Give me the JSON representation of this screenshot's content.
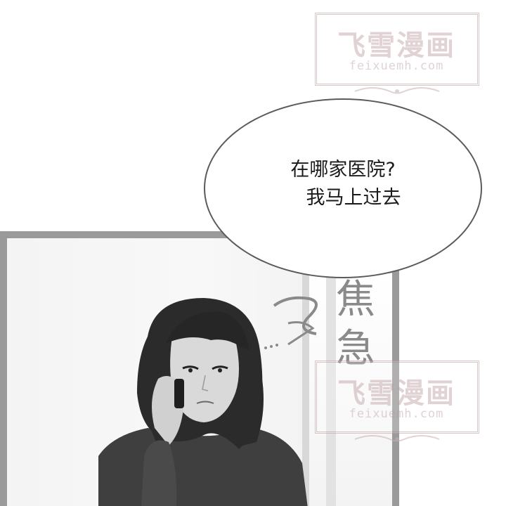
{
  "speech_bubble": {
    "line1": "在哪家医院?",
    "line2": "我马上过去"
  },
  "sfx": {
    "char1": "焦",
    "char2": "急"
  },
  "watermarks": [
    {
      "title": "飞雪漫画",
      "url": "feixuemh.com"
    },
    {
      "title": "飞雪漫画",
      "url": "feixuemh.com"
    }
  ],
  "colors": {
    "panel_border": "#9a9a9a",
    "bubble_outline": "#5a5a5a",
    "watermark": "#c9aeb0"
  },
  "illustration": {
    "subject": "woman with shoulder-length dark hair holding a phone to her ear",
    "style": "grayscale"
  }
}
